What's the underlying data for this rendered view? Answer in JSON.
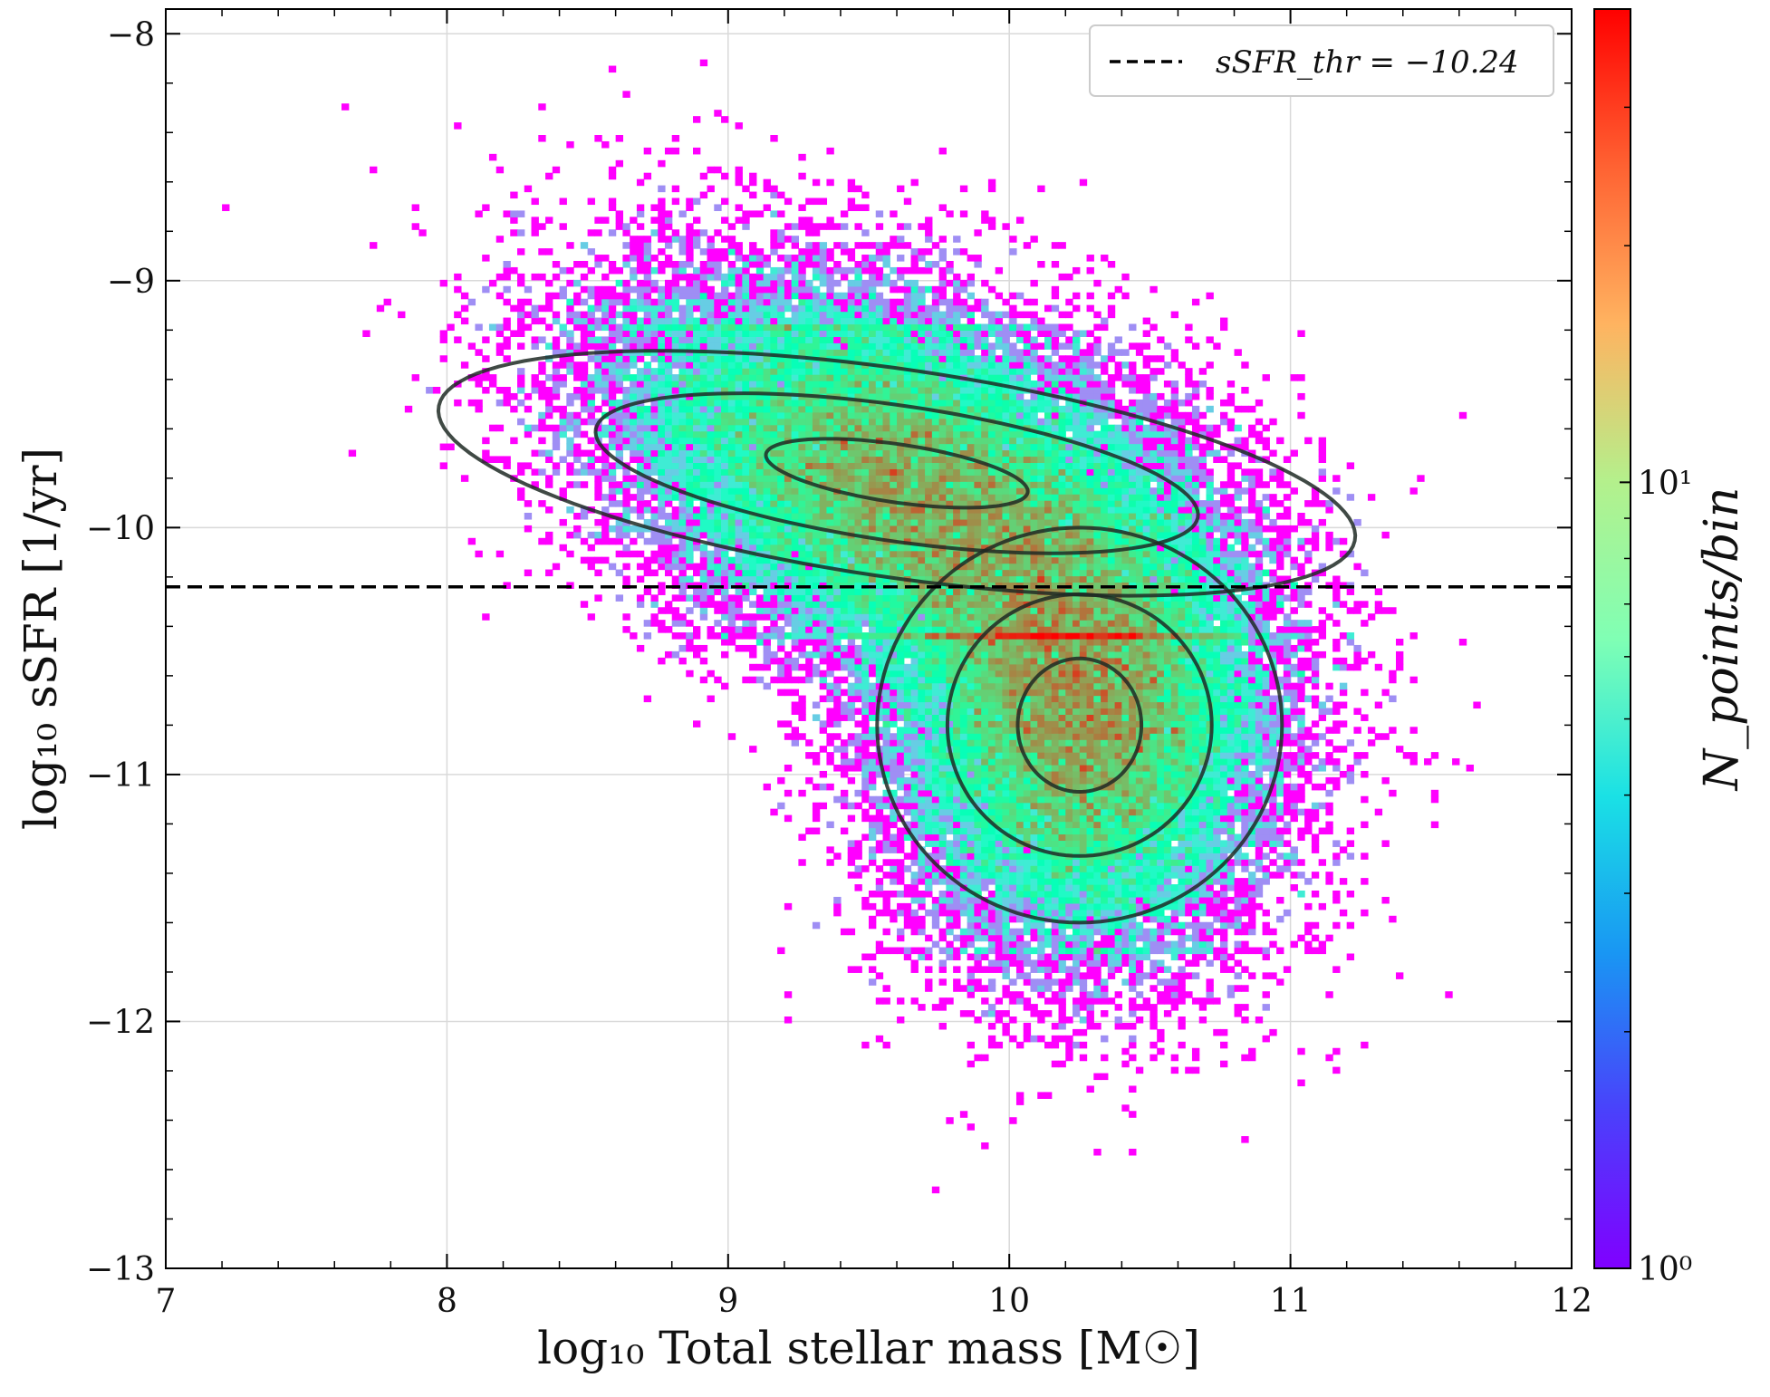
{
  "chart_data": {
    "type": "heatmap",
    "subtype": "2d-histogram-with-gaussian-contours",
    "xlabel": "log₁₀ Total stellar mass [M☉]",
    "ylabel": "log₁₀ sSFR [1/yr]",
    "xlim": [
      7,
      12
    ],
    "ylim": [
      -13,
      -7.9
    ],
    "x_ticks": [
      7,
      8,
      9,
      10,
      11,
      12
    ],
    "x_tick_labels": [
      "7",
      "8",
      "9",
      "10",
      "11",
      "12"
    ],
    "y_ticks": [
      -13,
      -12,
      -11,
      -10,
      -9,
      -8
    ],
    "y_tick_labels": [
      "−13",
      "−12",
      "−11",
      "−10",
      "−9",
      "−8"
    ],
    "grid": true,
    "colormap": "rainbow",
    "color_scale": "log",
    "colorbar": {
      "label": "N_points/bin",
      "range": [
        1,
        40
      ],
      "tick_labels": [
        "10⁰",
        "10¹"
      ],
      "tick_values": [
        1,
        10
      ]
    },
    "threshold_line": {
      "y": -10.24,
      "style": "dashed",
      "color": "#000000",
      "legend_label": "sSFR_thr = −10.24"
    },
    "legend_position": "top-right",
    "gaussian_components": [
      {
        "name": "",
        "center": [
          9.6,
          -9.78
        ],
        "contours": [
          {
            "a": 0.5,
            "b": 0.12,
            "angle_deg": -22
          },
          {
            "a": 1.15,
            "b": 0.28,
            "angle_deg": -22
          },
          {
            "a": 1.75,
            "b": 0.43,
            "angle_deg": -22
          }
        ]
      },
      {
        "name": "",
        "center": [
          10.25,
          -10.8
        ],
        "contours": [
          {
            "a": 0.22,
            "b": 0.27,
            "angle_deg": 0
          },
          {
            "a": 0.47,
            "b": 0.53,
            "angle_deg": 0
          },
          {
            "a": 0.72,
            "b": 0.8,
            "angle_deg": 0
          }
        ]
      }
    ],
    "density_model": {
      "total_points": 60000,
      "components": [
        {
          "weight": 0.55,
          "mean": [
            9.65,
            -9.85
          ],
          "sx": 0.52,
          "sy": 0.42,
          "rho": -0.45
        },
        {
          "weight": 0.45,
          "mean": [
            10.25,
            -10.78
          ],
          "sx": 0.33,
          "sy": 0.46,
          "rho": -0.05
        }
      ],
      "bins_x": 200,
      "bins_y": 200
    },
    "colors": {
      "contour": "#1f2a25",
      "grid": "#d9d9d9",
      "frame": "#000000"
    }
  }
}
